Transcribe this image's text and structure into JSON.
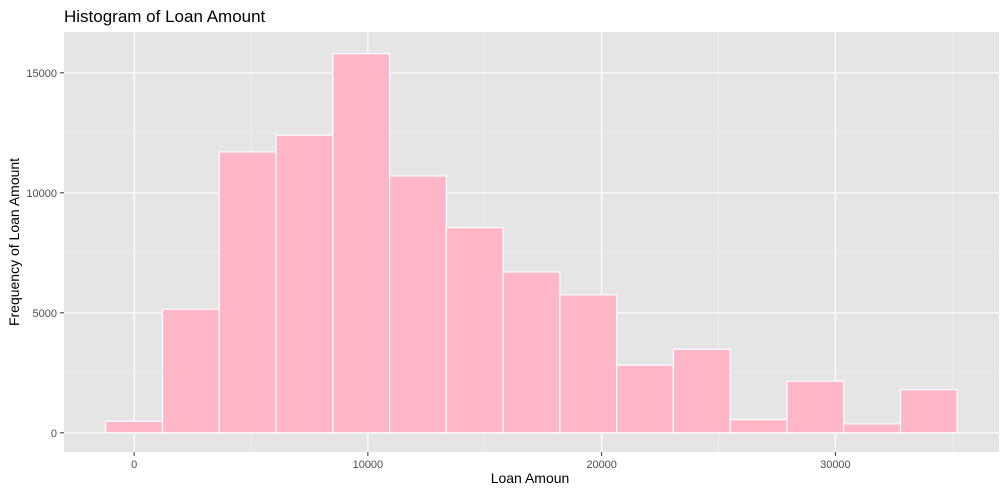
{
  "chart_data": {
    "type": "bar",
    "title": "Histogram of Loan Amount",
    "xlabel": "Loan Amoun",
    "ylabel": "Frequency of Loan Amount",
    "xlim": [
      -3000,
      37000
    ],
    "ylim": [
      -800,
      16700
    ],
    "x_ticks": [
      0,
      10000,
      20000,
      30000
    ],
    "x_tick_labels": [
      "0",
      "10000",
      "20000",
      "30000"
    ],
    "y_ticks": [
      0,
      5000,
      10000,
      15000
    ],
    "y_tick_labels": [
      "0",
      "5000",
      "10000",
      "15000"
    ],
    "grid": true,
    "bin_width": 2428.57,
    "bins": [
      {
        "x0": -1214,
        "x1": 1214,
        "count": 480
      },
      {
        "x0": 1214,
        "x1": 3643,
        "count": 5150
      },
      {
        "x0": 3643,
        "x1": 6071,
        "count": 11700
      },
      {
        "x0": 6071,
        "x1": 8500,
        "count": 12400
      },
      {
        "x0": 8500,
        "x1": 10929,
        "count": 15800
      },
      {
        "x0": 10929,
        "x1": 13357,
        "count": 10700
      },
      {
        "x0": 13357,
        "x1": 15786,
        "count": 8550
      },
      {
        "x0": 15786,
        "x1": 18214,
        "count": 6700
      },
      {
        "x0": 18214,
        "x1": 20643,
        "count": 5750
      },
      {
        "x0": 20643,
        "x1": 23071,
        "count": 2820
      },
      {
        "x0": 23071,
        "x1": 25500,
        "count": 3480
      },
      {
        "x0": 25500,
        "x1": 27929,
        "count": 550
      },
      {
        "x0": 27929,
        "x1": 30357,
        "count": 2150
      },
      {
        "x0": 30357,
        "x1": 32786,
        "count": 370
      },
      {
        "x0": 32786,
        "x1": 35214,
        "count": 1800
      }
    ],
    "colors": {
      "panel_background": "#e5e5e5",
      "grid_major": "#ffffff",
      "grid_minor": "#f2f2f2",
      "bar_fill": "#ffb6c6",
      "bar_outline": "#ffffff"
    }
  }
}
